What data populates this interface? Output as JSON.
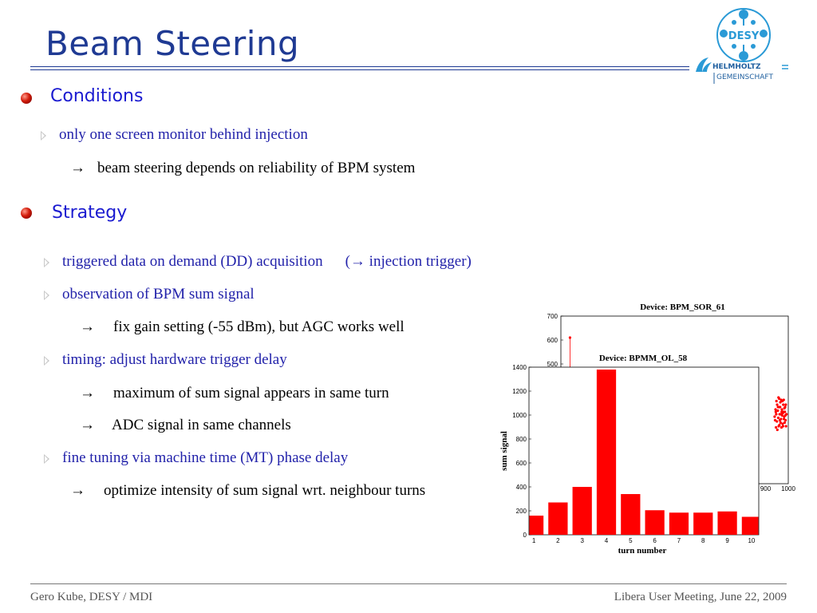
{
  "slide": {
    "title": "Beam Steering",
    "logo": {
      "name": "DESY",
      "org_line1": "HELMHOLTZ",
      "org_line2": "GEMEINSCHAFT"
    },
    "sections": [
      {
        "heading": "Conditions",
        "items": [
          {
            "text": "only one screen monitor behind injection",
            "sub": [
              "beam steering depends on reliability of BPM system"
            ]
          }
        ]
      },
      {
        "heading": "Strategy",
        "items": [
          {
            "text": "triggered data on demand (DD) acquisition",
            "note": "(→  injection trigger)",
            "sub": []
          },
          {
            "text": "observation of BPM sum signal",
            "sub": [
              "fix  gain setting  (-55 dBm),  but AGC works well"
            ]
          },
          {
            "text": "timing: adjust hardware trigger delay",
            "sub": [
              "maximum of sum signal appears in same turn",
              "ADC signal in same channels"
            ]
          },
          {
            "text": "fine tuning via machine time (MT) phase delay",
            "sub": [
              "optimize intensity of sum signal wrt. neighbour turns"
            ]
          }
        ]
      }
    ],
    "arrow": "→",
    "footer_left": "Gero Kube, DESY / MDI",
    "footer_right": "Libera User Meeting, June 22, 2009"
  },
  "colors": {
    "title": "#1f3a93",
    "heading": "#1a1ad0",
    "item": "#2222aa",
    "bar": "#ff0000",
    "bullet": "#d21b0a"
  },
  "chart_data": [
    {
      "type": "scatter",
      "title": "Device: BPM_SOR_61",
      "yticks": [
        500,
        600,
        700
      ],
      "xticks": [
        900,
        1000
      ],
      "ylim": [
        0,
        700
      ],
      "xlim": [
        0,
        1000
      ],
      "points": [
        [
          40,
          610
        ],
        [
          940,
          280
        ],
        [
          945,
          300
        ],
        [
          950,
          260
        ],
        [
          955,
          320
        ],
        [
          958,
          240
        ],
        [
          962,
          290
        ],
        [
          965,
          340
        ],
        [
          968,
          270
        ],
        [
          972,
          310
        ],
        [
          975,
          250
        ],
        [
          978,
          330
        ],
        [
          982,
          280
        ],
        [
          985,
          300
        ],
        [
          988,
          265
        ],
        [
          948,
          345
        ],
        [
          952,
          225
        ],
        [
          960,
          355
        ],
        [
          970,
          235
        ],
        [
          980,
          350
        ],
        [
          990,
          240
        ],
        [
          944,
          310
        ],
        [
          956,
          275
        ],
        [
          966,
          255
        ],
        [
          976,
          295
        ],
        [
          986,
          320
        ],
        [
          946,
          235
        ],
        [
          964,
          320
        ],
        [
          974,
          345
        ],
        [
          984,
          255
        ],
        [
          992,
          290
        ],
        [
          942,
          265
        ],
        [
          954,
          305
        ],
        [
          963,
          265
        ],
        [
          973,
          285
        ],
        [
          983,
          315
        ],
        [
          951,
          330
        ],
        [
          961,
          245
        ],
        [
          971,
          300
        ],
        [
          981,
          270
        ],
        [
          989,
          330
        ],
        [
          957,
          360
        ],
        [
          967,
          290
        ],
        [
          977,
          240
        ],
        [
          987,
          285
        ],
        [
          947,
          290
        ],
        [
          959,
          320
        ],
        [
          969,
          350
        ],
        [
          979,
          300
        ]
      ]
    },
    {
      "type": "bar",
      "title": "Device: BPMM_OL_58",
      "xlabel": "turn number",
      "ylabel": "sum signal",
      "categories": [
        "1",
        "2",
        "3",
        "4",
        "5",
        "6",
        "7",
        "8",
        "9",
        "10"
      ],
      "values": [
        160,
        270,
        400,
        1380,
        340,
        205,
        185,
        185,
        195,
        150
      ],
      "ylim": [
        0,
        1400
      ],
      "yticks": [
        0,
        200,
        400,
        600,
        800,
        1000,
        1200,
        1400
      ]
    }
  ]
}
